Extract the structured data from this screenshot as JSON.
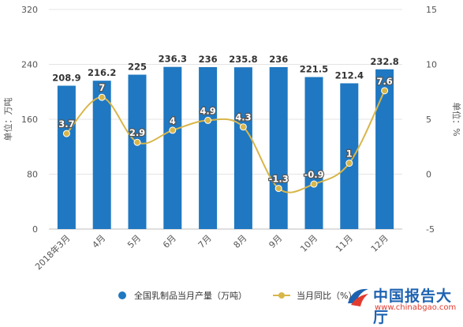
{
  "chart_data": {
    "type": "bar",
    "categories": [
      "2018年3月",
      "4月",
      "5月",
      "6月",
      "7月",
      "8月",
      "9月",
      "10月",
      "11月",
      "12月"
    ],
    "series": [
      {
        "name": "全国乳制品当月产量（万吨）",
        "type": "bar",
        "axis": "left",
        "color": "#1f78c1",
        "values": [
          208.9,
          216.2,
          225,
          236.3,
          236,
          235.8,
          236,
          221.5,
          212.4,
          232.8
        ]
      },
      {
        "name": "当月同比（%）",
        "type": "line",
        "axis": "right",
        "color": "#d8b64a",
        "values": [
          3.7,
          7,
          2.9,
          4,
          4.9,
          4.3,
          -1.3,
          -0.9,
          1,
          7.6
        ]
      }
    ],
    "ylabel": "单位：万吨",
    "y2label": "单位：%",
    "ylim": [
      0,
      320
    ],
    "y2lim": [
      -5,
      15
    ],
    "yticks": [
      0,
      80,
      160,
      240,
      320
    ],
    "y2ticks": [
      -5,
      0,
      5,
      10,
      15
    ],
    "grid": true,
    "legend_position": "bottom"
  },
  "watermark": {
    "text": "中国报告大厅",
    "url": "www.chinabgao.com"
  }
}
